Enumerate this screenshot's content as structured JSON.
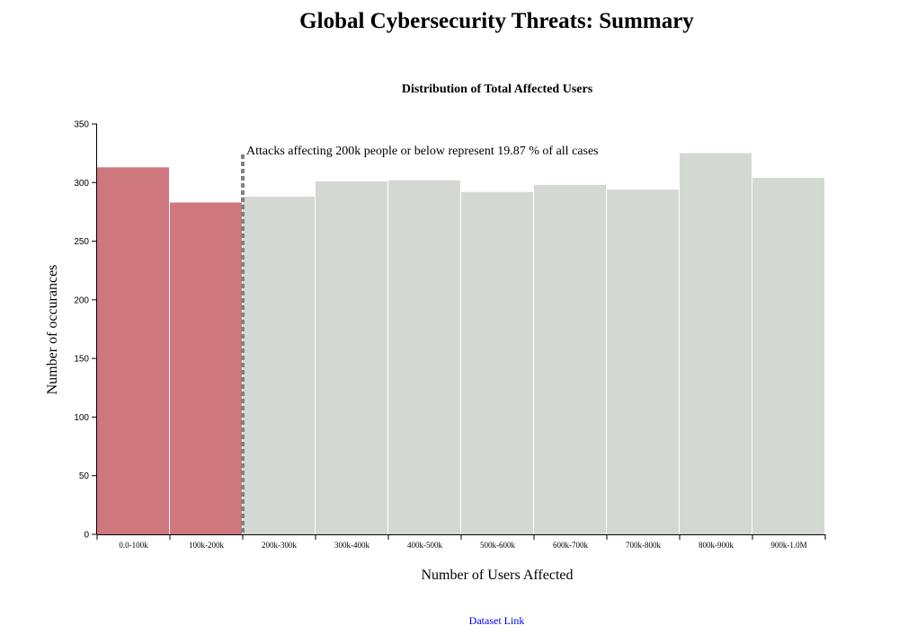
{
  "page": {
    "title": "Global Cybersecurity Threats: Summary",
    "dataset_link_label": "Dataset Link"
  },
  "colors": {
    "highlight": "#ce777c",
    "base": "#d3d8d3",
    "threshold_line": "#808080"
  },
  "chart_data": {
    "type": "bar",
    "title": "Distribution of Total Affected Users",
    "xlabel": "Number of Users Affected",
    "ylabel": "Number of occurances",
    "categories": [
      "0.0-100k",
      "100k-200k",
      "200k-300k",
      "300k-400k",
      "400k-500k",
      "500k-600k",
      "600k-700k",
      "700k-800k",
      "800k-900k",
      "900k-1.0M"
    ],
    "values": [
      313,
      283,
      288,
      301,
      302,
      292,
      298,
      294,
      325,
      304
    ],
    "highlighted_categories": [
      "0.0-100k",
      "100k-200k"
    ],
    "ylim": [
      0,
      350
    ],
    "yticks": [
      0,
      50,
      100,
      150,
      200,
      250,
      300,
      350
    ],
    "threshold": {
      "after_category": "100k-200k",
      "annotation": "Attacks affecting 200k people or below represent 19.87 % of all cases"
    },
    "grid": false,
    "legend": "none"
  }
}
